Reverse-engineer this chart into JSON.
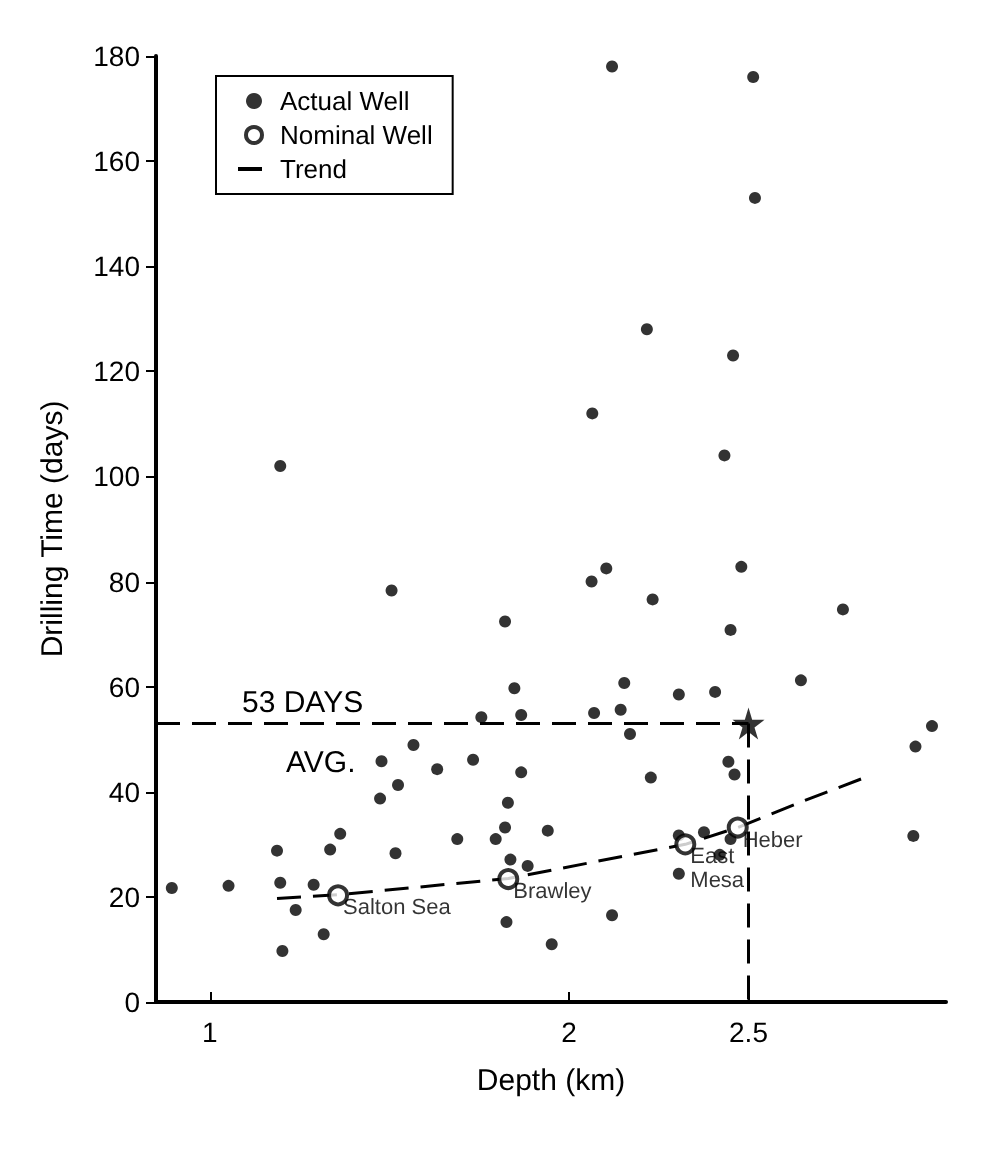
{
  "chart_data": {
    "type": "scatter",
    "xlabel": "Depth (km)",
    "ylabel": "Drilling Time (days)",
    "xlim": [
      0.85,
      3.05
    ],
    "xticks": [
      1,
      2,
      2.5
    ],
    "ylim": [
      0,
      180
    ],
    "yticks": [
      0,
      20,
      40,
      60,
      80,
      100,
      120,
      140,
      160,
      180
    ],
    "grid": false,
    "legend": "top left",
    "series": [
      {
        "name": "Actual Well",
        "marker": "circle",
        "color": "#000000",
        "x": [
          0.894,
          1.052,
          1.187,
          1.196,
          1.202,
          1.239,
          1.289,
          1.317,
          1.335,
          1.363,
          1.474,
          1.478,
          1.506,
          1.517,
          1.524,
          1.567,
          1.633,
          1.689,
          1.733,
          1.756,
          1.796,
          1.822,
          1.822,
          1.83,
          1.826,
          1.837,
          1.848,
          1.867,
          1.867,
          1.885,
          1.941,
          1.952,
          2.063,
          2.07,
          2.104,
          2.12,
          2.144,
          2.154,
          2.17,
          2.228,
          2.233,
          2.306,
          2.306,
          2.306,
          2.376,
          2.407,
          2.42,
          2.444,
          2.45,
          2.45,
          2.461,
          2.48,
          2.646,
          2.763,
          2.959,
          2.965,
          3.011,
          1.196,
          2.065,
          2.217,
          2.457,
          2.433,
          2.12,
          2.513,
          2.518
        ],
        "values": [
          21.7,
          22.1,
          28.8,
          22.7,
          9.7,
          17.5,
          22.3,
          12.9,
          29,
          32,
          38.7,
          45.8,
          78.3,
          28.3,
          41.3,
          48.9,
          44.3,
          31,
          46.1,
          54.2,
          31,
          72.4,
          33.2,
          37.9,
          15.2,
          27.1,
          59.7,
          43.7,
          54.6,
          25.9,
          32.6,
          11,
          80,
          55,
          82.5,
          16.5,
          55.6,
          60.7,
          51,
          42.7,
          76.6,
          58.5,
          31.7,
          24.4,
          32.3,
          59,
          28,
          45.7,
          70.8,
          31,
          43.3,
          82.8,
          61.2,
          74.7,
          31.6,
          48.6,
          52.5,
          102,
          112,
          128,
          123,
          104,
          178,
          176,
          153
        ]
      },
      {
        "name": "Nominal Well",
        "marker": "circle",
        "color": "#000000",
        "x": [
          1.357,
          1.831,
          2.324,
          2.47
        ],
        "values": [
          20.3,
          23.4,
          30,
          33.2
        ],
        "value_labels": [
          "Salton Sea",
          "Brawley",
          "East\nMesa",
          "Heber"
        ]
      },
      {
        "name": "Trend",
        "type": "line",
        "line_style": "dashed",
        "marker": "none",
        "color": "#000000",
        "x": [
          1.187,
          1.357,
          1.831,
          2.324,
          2.47,
          2.644,
          2.82
        ],
        "values": [
          19.7,
          20.4,
          23.5,
          30,
          33.2,
          38,
          42.6
        ]
      },
      {
        "type": "line",
        "line_style": "dashed",
        "marker": "none",
        "color": "#000000",
        "x": [
          0.85,
          2.5
        ],
        "values": [
          53,
          53
        ]
      },
      {
        "type": "line",
        "line_style": "dashed",
        "marker": "none",
        "color": "#000000",
        "x": [
          2.5,
          2.5
        ],
        "values": [
          53,
          0
        ]
      },
      {
        "marker": "star",
        "color": "#000000",
        "x": [
          2.5
        ],
        "values": [
          53
        ]
      }
    ],
    "annotations": [
      "53 DAYS",
      "AVG."
    ]
  }
}
